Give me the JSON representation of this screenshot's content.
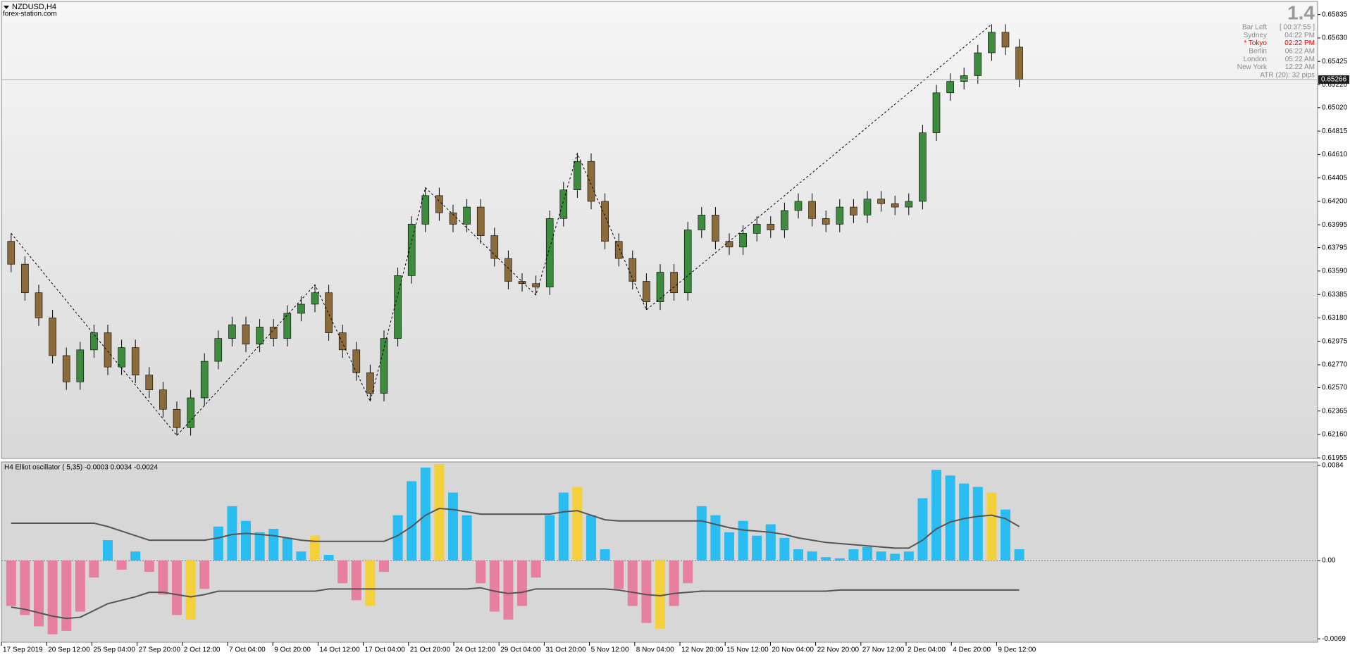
{
  "chart_data": [
    {
      "type": "candlestick",
      "title": "NZDUSD,H4",
      "subtitle": "forex-station.com",
      "ylim": [
        0.6195,
        0.6595
      ],
      "yticks": [
        0.65835,
        {
          "value": 0.6563,
          "label": "0.65630"
        },
        0.65425,
        {
          "value": 0.6522,
          "label": "0.65220"
        },
        {
          "value": 0.6502,
          "label": "0.65020"
        },
        0.64815,
        {
          "value": 0.6461,
          "label": "0.64610"
        },
        0.64405,
        {
          "value": 0.642,
          "label": "0.64200"
        },
        0.63995,
        0.63795,
        {
          "value": 0.6359,
          "label": "0.63590"
        },
        0.63385,
        {
          "value": 0.6318,
          "label": "0.63180"
        },
        0.62975,
        {
          "value": 0.6277,
          "label": "0.62770"
        },
        {
          "value": 0.6257,
          "label": "0.62570"
        },
        0.62365,
        {
          "value": 0.6216,
          "label": "0.62160"
        },
        0.61955
      ],
      "current_price": 0.65266,
      "up_color": "#3d8b3d",
      "down_color": "#8b6b3a",
      "open": [
        0.6385,
        0.6365,
        0.634,
        0.6318,
        0.6285,
        0.6262,
        0.629,
        0.6305,
        0.6275,
        0.6292,
        0.6268,
        0.6255,
        0.6238,
        0.6222,
        0.6248,
        0.628,
        0.63,
        0.6312,
        0.6295,
        0.631,
        0.63,
        0.6322,
        0.633,
        0.634,
        0.6305,
        0.629,
        0.627,
        0.6252,
        0.63,
        0.6355,
        0.64,
        0.6425,
        0.641,
        0.64,
        0.6415,
        0.639,
        0.637,
        0.635,
        0.6348,
        0.6345,
        0.6405,
        0.643,
        0.6455,
        0.642,
        0.6385,
        0.637,
        0.635,
        0.6332,
        0.6358,
        0.634,
        0.6395,
        0.6408,
        0.6385,
        0.638,
        0.6392,
        0.64,
        0.6395,
        0.6412,
        0.642,
        0.6405,
        0.64,
        0.6415,
        0.6408,
        0.6422,
        0.6418,
        0.6415,
        0.642,
        0.648,
        0.6515,
        0.6525,
        0.653,
        0.655,
        0.6568,
        0.6555
      ],
      "high": [
        0.6392,
        0.6372,
        0.6347,
        0.6325,
        0.6292,
        0.6297,
        0.6312,
        0.6312,
        0.6299,
        0.6299,
        0.6275,
        0.6262,
        0.6245,
        0.6255,
        0.6287,
        0.6307,
        0.6319,
        0.6319,
        0.6317,
        0.6317,
        0.6329,
        0.6337,
        0.6347,
        0.6347,
        0.6312,
        0.6297,
        0.6277,
        0.6307,
        0.6362,
        0.6407,
        0.6432,
        0.6432,
        0.6417,
        0.6422,
        0.6422,
        0.6397,
        0.6377,
        0.6357,
        0.6355,
        0.6412,
        0.6437,
        0.6462,
        0.6462,
        0.6427,
        0.6392,
        0.6377,
        0.6357,
        0.6365,
        0.6365,
        0.6402,
        0.6415,
        0.6415,
        0.6392,
        0.6399,
        0.6407,
        0.6407,
        0.6419,
        0.6427,
        0.6427,
        0.6412,
        0.6422,
        0.6422,
        0.6429,
        0.6429,
        0.6425,
        0.6427,
        0.6487,
        0.6522,
        0.6532,
        0.6537,
        0.6557,
        0.6575,
        0.6575,
        0.6562
      ],
      "low": [
        0.6358,
        0.6333,
        0.6311,
        0.6278,
        0.6255,
        0.6255,
        0.6283,
        0.6268,
        0.6268,
        0.6261,
        0.6248,
        0.6231,
        0.6215,
        0.6215,
        0.6241,
        0.6273,
        0.6293,
        0.6288,
        0.6288,
        0.6293,
        0.6293,
        0.6315,
        0.6323,
        0.6298,
        0.6283,
        0.6263,
        0.6245,
        0.6245,
        0.6293,
        0.6348,
        0.6393,
        0.6403,
        0.6393,
        0.6393,
        0.6383,
        0.6363,
        0.6343,
        0.6341,
        0.6338,
        0.6338,
        0.6398,
        0.6423,
        0.6413,
        0.6378,
        0.6363,
        0.6343,
        0.6325,
        0.6325,
        0.6333,
        0.6333,
        0.6388,
        0.6378,
        0.6373,
        0.6373,
        0.6385,
        0.6388,
        0.6388,
        0.6405,
        0.6398,
        0.6393,
        0.6393,
        0.6401,
        0.6401,
        0.6411,
        0.6408,
        0.6408,
        0.6413,
        0.6473,
        0.6508,
        0.6518,
        0.6523,
        0.6543,
        0.6548,
        0.652
      ],
      "close": [
        0.6365,
        0.634,
        0.6318,
        0.6285,
        0.6262,
        0.629,
        0.6305,
        0.6275,
        0.6292,
        0.6268,
        0.6255,
        0.6238,
        0.6222,
        0.6248,
        0.628,
        0.63,
        0.6312,
        0.6295,
        0.631,
        0.63,
        0.6322,
        0.633,
        0.634,
        0.6305,
        0.629,
        0.627,
        0.6252,
        0.63,
        0.6355,
        0.64,
        0.6425,
        0.641,
        0.64,
        0.6415,
        0.639,
        0.637,
        0.635,
        0.6348,
        0.6345,
        0.6405,
        0.643,
        0.6455,
        0.642,
        0.6385,
        0.637,
        0.635,
        0.6332,
        0.6358,
        0.634,
        0.6395,
        0.6408,
        0.6385,
        0.638,
        0.6392,
        0.64,
        0.6395,
        0.6412,
        0.642,
        0.6405,
        0.64,
        0.6415,
        0.6408,
        0.6422,
        0.6418,
        0.6415,
        0.642,
        0.648,
        0.6515,
        0.6525,
        0.653,
        0.655,
        0.6568,
        0.6555,
        0.6527
      ],
      "zigzag": {
        "x": [
          0,
          12,
          22,
          26,
          30,
          38,
          41,
          46,
          71
        ],
        "y": [
          0.6392,
          0.6215,
          0.6347,
          0.6245,
          0.6432,
          0.6338,
          0.6462,
          0.6325,
          0.6575
        ]
      },
      "info_panel": {
        "value": "1.4",
        "rows": [
          {
            "label": "Bar Left",
            "value": "[ 00:37:55 ]"
          },
          {
            "label": "Sydney",
            "value": "04:22 PM"
          },
          {
            "label": "* Tokyo",
            "value": "02:22 PM",
            "color": "#ff0000"
          },
          {
            "label": "Berlin",
            "value": "06:22 AM"
          },
          {
            "label": "London",
            "value": "05:22 AM"
          },
          {
            "label": "New York",
            "value": "12:22 AM"
          }
        ],
        "footer": "ATR (20): 32 pips"
      }
    },
    {
      "type": "histogram",
      "title": "H4 Elliot oscillator ( 5,35) -0.0003 0.0034 -0.0024",
      "ylim": [
        -0.0072,
        0.0087
      ],
      "yticks": [
        0.0084,
        {
          "value": 0,
          "label": "0.00"
        },
        -0.0069
      ],
      "up_color": "#29bdf2",
      "down_color": "#e77f9f",
      "highlight_color": "#f4d13a",
      "highlight": [
        13,
        22,
        26,
        31,
        41,
        47,
        71
      ],
      "values": [
        -0.004,
        -0.0048,
        -0.0058,
        -0.0065,
        -0.0062,
        -0.0045,
        -0.0015,
        0.0018,
        -0.0008,
        0.0008,
        -0.001,
        -0.003,
        -0.0048,
        -0.0052,
        -0.0025,
        0.003,
        0.0048,
        0.0035,
        0.0025,
        0.0028,
        0.002,
        0.0008,
        0.0022,
        0.0005,
        -0.002,
        -0.0035,
        -0.004,
        -0.001,
        0.004,
        0.007,
        0.0082,
        0.0085,
        0.006,
        0.004,
        -0.002,
        -0.0045,
        -0.0052,
        -0.004,
        -0.0015,
        0.004,
        0.006,
        0.0065,
        0.004,
        0.001,
        -0.0025,
        -0.004,
        -0.0055,
        -0.006,
        -0.004,
        -0.002,
        0.0048,
        0.004,
        0.0025,
        0.0035,
        0.0022,
        0.0032,
        0.002,
        0.001,
        0.0008,
        0.0003,
        0.0002,
        0.001,
        0.0012,
        0.0008,
        0.0006,
        0.0008,
        0.0055,
        0.008,
        0.0075,
        0.0068,
        0.0065,
        0.006,
        0.0045,
        0.001
      ],
      "bands": [
        {
          "color": "#555555",
          "values": [
            0.0033,
            0.0033,
            0.0033,
            0.0033,
            0.0033,
            0.0033,
            0.0033,
            0.003,
            0.0026,
            0.0022,
            0.0018,
            0.0018,
            0.0018,
            0.0018,
            0.0018,
            0.002,
            0.0023,
            0.0024,
            0.0023,
            0.0022,
            0.002,
            0.0018,
            0.0017,
            0.0017,
            0.0017,
            0.0017,
            0.0017,
            0.0017,
            0.0022,
            0.003,
            0.004,
            0.0046,
            0.0045,
            0.0043,
            0.0041,
            0.0041,
            0.0041,
            0.0041,
            0.0041,
            0.0041,
            0.0043,
            0.0044,
            0.004,
            0.0036,
            0.0035,
            0.0035,
            0.0035,
            0.0035,
            0.0035,
            0.0035,
            0.0035,
            0.0032,
            0.0029,
            0.0027,
            0.0026,
            0.0025,
            0.0023,
            0.002,
            0.0018,
            0.0016,
            0.0015,
            0.0014,
            0.0013,
            0.0012,
            0.0011,
            0.0011,
            0.0018,
            0.0028,
            0.0034,
            0.0037,
            0.0039,
            0.004,
            0.0037,
            0.003
          ]
        },
        {
          "color": "#555555",
          "values": [
            -0.0041,
            -0.0043,
            -0.0046,
            -0.0049,
            -0.0051,
            -0.005,
            -0.0044,
            -0.0038,
            -0.0035,
            -0.0032,
            -0.0028,
            -0.0028,
            -0.003,
            -0.0032,
            -0.003,
            -0.0027,
            -0.0027,
            -0.0027,
            -0.0027,
            -0.0027,
            -0.0027,
            -0.0027,
            -0.0027,
            -0.0025,
            -0.0025,
            -0.0025,
            -0.0025,
            -0.0025,
            -0.0025,
            -0.0025,
            -0.0025,
            -0.0025,
            -0.0025,
            -0.0025,
            -0.0024,
            -0.0027,
            -0.0029,
            -0.0028,
            -0.0025,
            -0.0025,
            -0.0025,
            -0.0025,
            -0.0025,
            -0.0025,
            -0.0026,
            -0.0028,
            -0.003,
            -0.0031,
            -0.0029,
            -0.0028,
            -0.0027,
            -0.0027,
            -0.0027,
            -0.0027,
            -0.0027,
            -0.0027,
            -0.0027,
            -0.0027,
            -0.0027,
            -0.0027,
            -0.0026,
            -0.0026,
            -0.0026,
            -0.0026,
            -0.0026,
            -0.0026,
            -0.0026,
            -0.0026,
            -0.0026,
            -0.0026,
            -0.0026,
            -0.0026,
            -0.0026,
            -0.0026
          ]
        }
      ],
      "time_labels": [
        "17 Sep 2019",
        "20 Sep 12:00",
        "25 Sep 04:00",
        "27 Sep 20:00",
        "2 Oct 12:00",
        "7 Oct 04:00",
        "9 Oct 20:00",
        "14 Oct 12:00",
        "17 Oct 04:00",
        "21 Oct 20:00",
        "24 Oct 12:00",
        "29 Oct 04:00",
        "31 Oct 20:00",
        "5 Nov 12:00",
        "8 Nov 04:00",
        "12 Nov 20:00",
        "15 Nov 12:00",
        "20 Nov 04:00",
        "22 Nov 20:00",
        "27 Nov 12:00",
        "2 Dec 04:00",
        "4 Dec 20:00",
        "9 Dec 12:00"
      ]
    }
  ]
}
